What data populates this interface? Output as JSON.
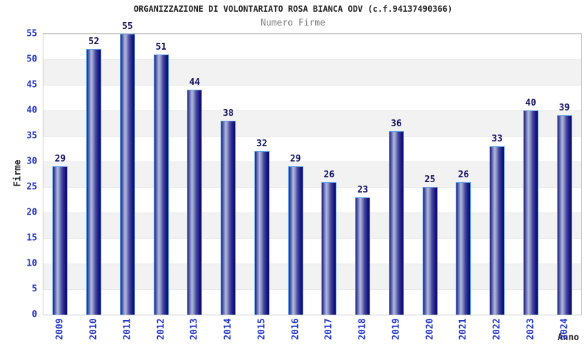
{
  "header": {
    "title": "ORGANIZZAZIONE DI VOLONTARIATO ROSA BIANCA ODV (c.f.94137490366)",
    "subtitle": "Numero Firme"
  },
  "chart_data": {
    "type": "bar",
    "title": "Numero Firme",
    "categories": [
      "2009",
      "2010",
      "2011",
      "2012",
      "2013",
      "2014",
      "2015",
      "2016",
      "2017",
      "2018",
      "2019",
      "2020",
      "2021",
      "2022",
      "2023",
      "2024"
    ],
    "values": [
      29,
      52,
      55,
      51,
      44,
      38,
      32,
      29,
      26,
      23,
      36,
      25,
      26,
      33,
      40,
      39
    ],
    "xlabel": "Anno",
    "ylabel": "Firme",
    "ylim": [
      0,
      55
    ],
    "ytick_step": 5,
    "legend": "none",
    "grid": "horizontal-bands-every-5",
    "colors": {
      "title_text": "#222222",
      "subtitle_text": "#7d7d7d",
      "axis_title_text": "#2b2b2b",
      "tick_label_text": "#2236cc",
      "value_label_text": "#101066",
      "bar_border": "#5b9fe8",
      "bar_gradient_dark": "#0d0d70",
      "bar_gradient_highlight": "#b2badd",
      "band_alt_gray": "#f2f2f2",
      "gridline": "#e7e7e7",
      "plot_border": "#c9c9c9",
      "background": "#ffffff"
    }
  }
}
